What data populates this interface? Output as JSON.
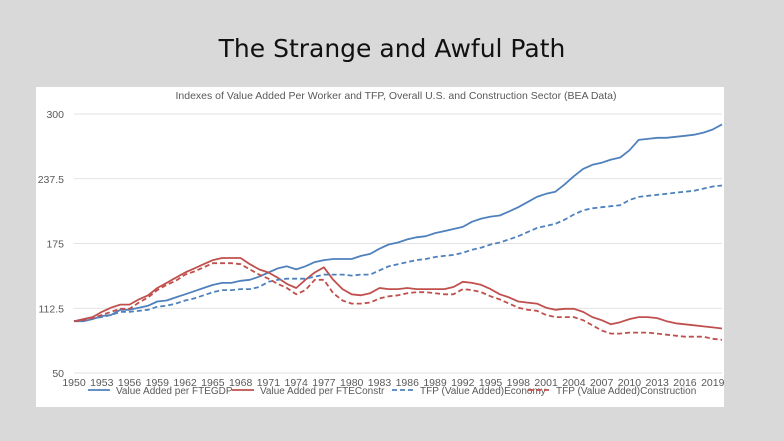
{
  "slide": {
    "title": "The Strange and Awful Path"
  },
  "chart_data": {
    "type": "line",
    "title": "Indexes of Value Added Per Worker and TFP, Overall U.S. and Construction Sector (BEA Data)",
    "xlabel": "",
    "ylabel": "",
    "xlim": [
      1950,
      2020
    ],
    "ylim": [
      50,
      300
    ],
    "yticks": [
      50,
      112.5,
      175,
      237.5,
      300
    ],
    "xticks": [
      1950,
      1953,
      1956,
      1959,
      1962,
      1965,
      1968,
      1971,
      1974,
      1977,
      1980,
      1983,
      1986,
      1989,
      1992,
      1995,
      1998,
      2001,
      2004,
      2007,
      2010,
      2013,
      2016,
      2019
    ],
    "grid": "horizontal",
    "legend_position": "bottom",
    "x": [
      1950,
      1951,
      1952,
      1953,
      1954,
      1955,
      1956,
      1957,
      1958,
      1959,
      1960,
      1961,
      1962,
      1963,
      1964,
      1965,
      1966,
      1967,
      1968,
      1969,
      1970,
      1971,
      1972,
      1973,
      1974,
      1975,
      1976,
      1977,
      1978,
      1979,
      1980,
      1981,
      1982,
      1983,
      1984,
      1985,
      1986,
      1987,
      1988,
      1989,
      1990,
      1991,
      1992,
      1993,
      1994,
      1995,
      1996,
      1997,
      1998,
      1999,
      2000,
      2001,
      2002,
      2003,
      2004,
      2005,
      2006,
      2007,
      2008,
      2009,
      2010,
      2011,
      2012,
      2013,
      2014,
      2015,
      2016,
      2017,
      2018,
      2019,
      2020
    ],
    "series": [
      {
        "name": "Value Added per FTEGDP",
        "color": "#4f81bd",
        "dash": "solid",
        "values": [
          100,
          100,
          102,
          105,
          106,
          111,
          111,
          113,
          115,
          119,
          120,
          123,
          126,
          129,
          132,
          135,
          137,
          137,
          139,
          140,
          143,
          147,
          151,
          153,
          150,
          153,
          157,
          159,
          160,
          160,
          160,
          163,
          165,
          170,
          174,
          176,
          179,
          181,
          182,
          185,
          187,
          189,
          191,
          196,
          199,
          201,
          202,
          206,
          210,
          215,
          220,
          223,
          225,
          232,
          240,
          247,
          251,
          253,
          256,
          258,
          265,
          275,
          276,
          277,
          277,
          278,
          279,
          280,
          282,
          285,
          290
        ]
      },
      {
        "name": "Value Added per FTEConstr",
        "color": "#c0504d",
        "dash": "solid",
        "values": [
          100,
          102,
          104,
          109,
          113,
          116,
          116,
          121,
          125,
          132,
          137,
          142,
          147,
          151,
          155,
          159,
          161,
          161,
          161,
          155,
          150,
          147,
          142,
          136,
          132,
          140,
          147,
          152,
          140,
          131,
          126,
          125,
          127,
          132,
          131,
          131,
          132,
          131,
          131,
          131,
          131,
          133,
          138,
          137,
          135,
          131,
          126,
          123,
          119,
          118,
          117,
          113,
          111,
          112,
          112,
          109,
          104,
          101,
          97,
          99,
          102,
          104,
          104,
          103,
          100,
          98,
          97,
          96,
          95,
          94,
          93
        ]
      },
      {
        "name": "TFP (Value Added)Economy",
        "color": "#4f81bd",
        "dash": "dashed",
        "values": [
          100,
          101,
          103,
          104,
          106,
          109,
          109,
          110,
          111,
          114,
          115,
          117,
          120,
          122,
          125,
          128,
          130,
          130,
          131,
          131,
          133,
          138,
          140,
          141,
          141,
          141,
          143,
          145,
          145,
          145,
          144,
          145,
          145,
          149,
          153,
          155,
          157,
          159,
          160,
          162,
          163,
          164,
          166,
          169,
          171,
          174,
          176,
          179,
          182,
          186,
          190,
          192,
          194,
          198,
          203,
          207,
          209,
          210,
          211,
          212,
          217,
          220,
          221,
          222,
          223,
          224,
          225,
          226,
          228,
          230,
          231
        ]
      },
      {
        "name": "TFP (Value Added)Construction",
        "color": "#c0504d",
        "dash": "dashed",
        "values": [
          100,
          101,
          103,
          106,
          109,
          112,
          112,
          118,
          123,
          130,
          135,
          139,
          145,
          148,
          152,
          156,
          156,
          156,
          155,
          150,
          145,
          141,
          136,
          132,
          126,
          130,
          140,
          140,
          127,
          120,
          117,
          117,
          118,
          122,
          124,
          125,
          127,
          128,
          128,
          127,
          126,
          126,
          131,
          130,
          128,
          124,
          121,
          117,
          113,
          111,
          110,
          106,
          104,
          104,
          104,
          101,
          96,
          91,
          88,
          88,
          89,
          89,
          89,
          88,
          87,
          86,
          85,
          85,
          85,
          83,
          82
        ]
      }
    ]
  }
}
